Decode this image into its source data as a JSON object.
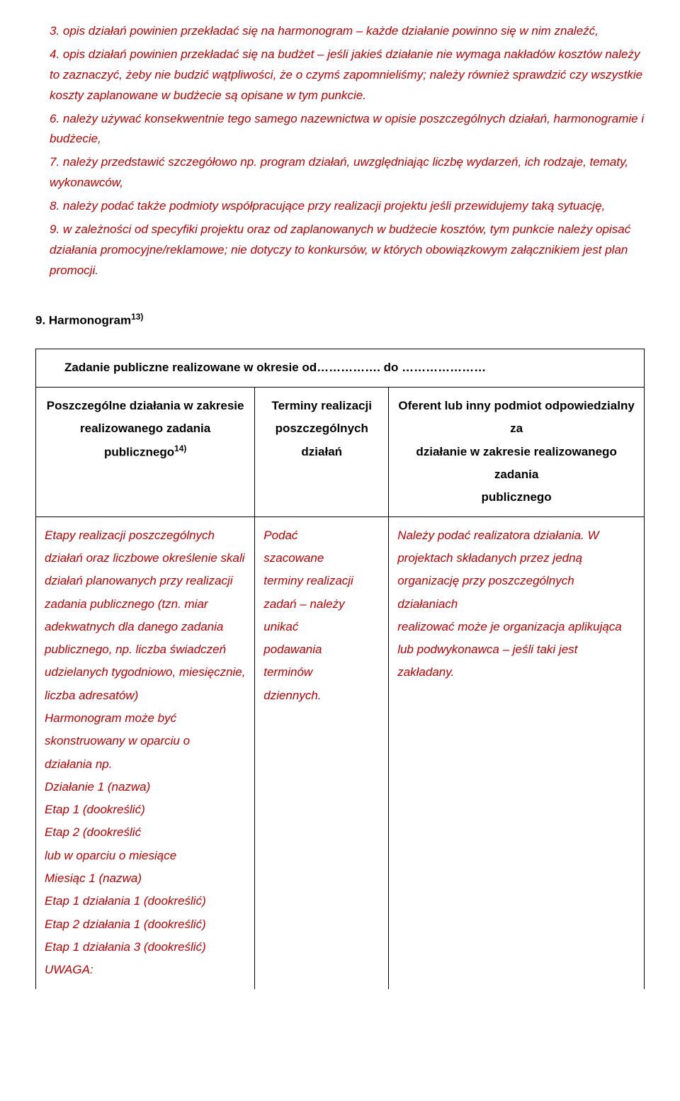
{
  "list": {
    "item3": "3. opis działań powinien przekładać się na harmonogram – każde działanie powinno się w nim znaleźć,",
    "item4": "4. opis działań powinien przekładać się na budżet – jeśli jakieś działanie nie wymaga nakładów kosztów należy to zaznaczyć, żeby nie budzić wątpliwości, że o czymś zapomnieliśmy; należy również sprawdzić czy wszystkie koszty zaplanowane w budżecie są opisane w tym punkcie.",
    "item6": "6. należy używać konsekwentnie tego samego nazewnictwa w opisie poszczególnych działań, harmonogramie i budżecie,",
    "item7": "7. należy przedstawić szczegółowo np. program działań, uwzględniając liczbę wydarzeń, ich rodzaje, tematy, wykonawców,",
    "item8": "8. należy podać także podmioty współpracujące przy realizacji projektu jeśli przewidujemy taką sytuację,",
    "item9": "9. w zależności od specyfiki projektu oraz od zaplanowanych w budżecie kosztów, tym punkcie należy opisać działania promocyjne/reklamowe; nie dotyczy to konkursów, w których obowiązkowym załącznikiem jest plan promocji."
  },
  "heading": "9. Harmonogram",
  "heading_sup": "13)",
  "table": {
    "title": "Zadanie publiczne realizowane w okresie od……………. do …………………",
    "header": {
      "col1_line1": "Poszczególne działania w zakresie",
      "col1_line2": "realizowanego zadania",
      "col1_line3_a": "publicznego",
      "col1_line3_sup": "14)",
      "col2_line1": "Terminy realizacji",
      "col2_line2": "poszczególnych",
      "col2_line3": "działań",
      "col3_line1": "Oferent lub inny podmiot odpowiedzialny za",
      "col3_line2": "działanie w zakresie realizowanego zadania",
      "col3_line3": "publicznego"
    },
    "body": {
      "col1": "Etapy realizacji poszczególnych działań oraz liczbowe określenie skali\ndziałań planowanych przy realizacji\nzadania publicznego (tzn. miar\nadekwatnych dla danego zadania\npublicznego, np. liczba świadczeń udzielanych tygodniowo, miesięcznie,\nliczba adresatów)\nHarmonogram może być\nskonstruowany w oparciu o\ndziałania np.\nDziałanie 1 (nazwa)\nEtap 1 (dookreślić)\nEtap 2 (dookreślić\nlub w oparciu o miesiące\nMiesiąc 1 (nazwa)\nEtap 1 działania 1 (dookreślić)\nEtap 2 działania 1 (dookreślić)\nEtap 1 działania 3 (dookreślić)\nUWAGA:",
      "col2": "Podać\nszacowane\nterminy realizacji\nzadań – należy\nunikać\npodawania\nterminów\ndziennych.",
      "col3": "Należy podać realizatora działania. W\nprojektach składanych przez jedną\norganizację przy poszczególnych działaniach\nrealizować może je organizacja aplikująca\nlub podwykonawca – jeśli taki jest zakładany."
    }
  }
}
